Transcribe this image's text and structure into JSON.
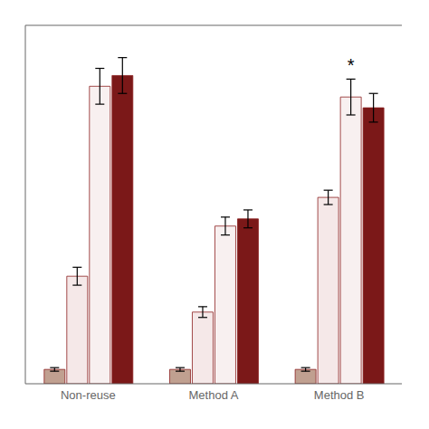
{
  "chart_data": {
    "type": "bar",
    "categories": [
      "Non-reuse",
      "Method A",
      "Method B"
    ],
    "series": [
      {
        "color": "#c0a090",
        "values": [
          4,
          4,
          4
        ],
        "errors": [
          0.5,
          0.5,
          0.5
        ]
      },
      {
        "color": "#f5e8e8",
        "values": [
          30,
          20,
          52
        ],
        "errors": [
          2.5,
          1.5,
          2.0
        ]
      },
      {
        "color": "#f8f0f0",
        "values": [
          83,
          44,
          80
        ],
        "errors": [
          5.0,
          2.5,
          5.0
        ]
      },
      {
        "color": "#7B1818",
        "values": [
          86,
          46,
          77
        ],
        "errors": [
          5.0,
          2.5,
          4.0
        ]
      }
    ],
    "ylim": [
      0,
      100
    ],
    "tick_labels": "x",
    "grid": false,
    "annotations": [
      {
        "text": "*",
        "x": "Method B",
        "series": 2,
        "y": 87
      }
    ]
  }
}
